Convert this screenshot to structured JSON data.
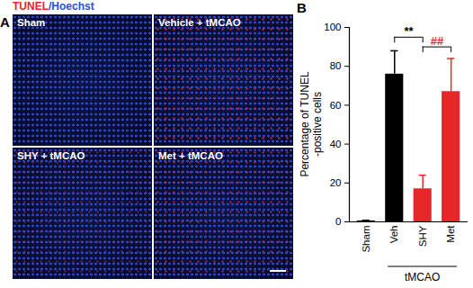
{
  "panel_a": {
    "panel_label": "A",
    "header": [
      {
        "text": "TUNEL",
        "color": "#e8262a"
      },
      {
        "text": "/Hoechst",
        "color": "#2b4fd8"
      }
    ],
    "images": [
      "Sham",
      "Vehicle + tMCAO",
      "SHY + tMCAO",
      "Met + tMCAO"
    ]
  },
  "chart_data": {
    "type": "bar",
    "panel_label": "B",
    "categories": [
      "Sham",
      "Veh",
      "SHY",
      "Met"
    ],
    "values": [
      0.5,
      76,
      17,
      67
    ],
    "errors": [
      0.3,
      12,
      7,
      17
    ],
    "colors": [
      "#000000",
      "#000000",
      "#e8262a",
      "#e8262a"
    ],
    "y_label": "Percentage of TUNEL\n-positive cells",
    "ylim": [
      0,
      100
    ],
    "yticks": [
      0,
      20,
      40,
      60,
      80,
      100
    ],
    "grid": false,
    "group_labels": [
      {
        "text": "tMCAO",
        "categories": [
          "Veh",
          "SHY",
          "Met"
        ]
      }
    ],
    "annotations": [
      {
        "text": "**",
        "from": "Veh",
        "to": "SHY",
        "y": 95,
        "color": "#000000"
      },
      {
        "text": "##",
        "from": "SHY",
        "to": "Met",
        "y": 90,
        "color": "#e8262a"
      }
    ]
  }
}
